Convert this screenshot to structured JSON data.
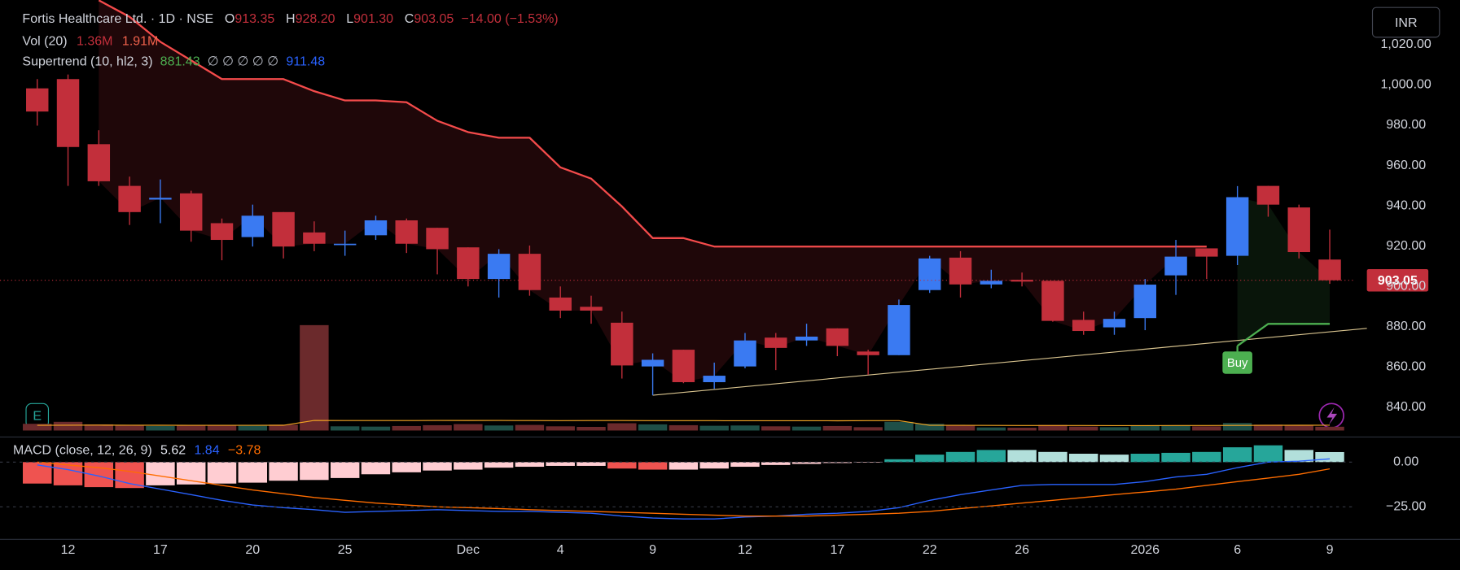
{
  "chart_data": {
    "type": "candlestick",
    "title": "Fortis Healthcare Ltd. · 1D · NSE",
    "ohlc_prefixes": [
      "O",
      "H",
      "L",
      "C"
    ],
    "ohlc_labels": [
      "913.35",
      "928.20",
      "901.30",
      "903.05"
    ],
    "change_label": "−14.00 (−1.53%)",
    "last_price_label": "903.05",
    "currency": "INR",
    "badge": "E",
    "colors": {
      "up": "#3a7af2",
      "down": "#c22f3b"
    },
    "categories": [
      null,
      "12",
      null,
      null,
      "17",
      null,
      null,
      "20",
      null,
      null,
      "25",
      null,
      null,
      null,
      "Dec",
      null,
      null,
      "4",
      null,
      null,
      "9",
      null,
      null,
      "12",
      null,
      null,
      "17",
      null,
      null,
      "22",
      null,
      null,
      "26",
      null,
      null,
      null,
      "2026",
      null,
      null,
      "6",
      null,
      null,
      "9"
    ],
    "open": [
      998.3,
      1002.9,
      970.6,
      949.9,
      943.1,
      946.2,
      931.4,
      924.5,
      936.9,
      926.8,
      920.8,
      925.4,
      932.8,
      929.1,
      919.4,
      903.7,
      916.2,
      894.5,
      889.9,
      882.0,
      860.3,
      868.6,
      852.5,
      860.3,
      874.6,
      873.2,
      879.2,
      867.7,
      865.9,
      898.2,
      914.3,
      901.0,
      903.3,
      902.8,
      883.4,
      879.7,
      884.3,
      905.5,
      918.9,
      915.2,
      949.9,
      939.2,
      913.35
    ],
    "high": [
      1002.9,
      1005.2,
      977.5,
      954.5,
      953.1,
      947.5,
      933.7,
      940.6,
      936.9,
      932.3,
      927.7,
      935.1,
      933.7,
      929.1,
      919.4,
      918.5,
      920.3,
      900.0,
      895.4,
      887.5,
      866.8,
      868.6,
      862.2,
      876.9,
      876.9,
      881.5,
      879.2,
      868.6,
      893.5,
      915.2,
      917.5,
      908.3,
      906.9,
      902.8,
      887.5,
      887.5,
      903.7,
      923.1,
      918.9,
      949.8,
      949.9,
      940.6,
      928.2
    ],
    "low": [
      979.8,
      949.9,
      949.9,
      930.5,
      931.4,
      922.2,
      913.0,
      919.8,
      913.9,
      917.5,
      915.2,
      923.1,
      916.6,
      906.0,
      900.0,
      894.5,
      895.4,
      884.3,
      881.5,
      854.3,
      846.0,
      852.0,
      849.2,
      859.4,
      858.5,
      870.5,
      865.4,
      856.2,
      865.9,
      896.8,
      894.5,
      899.1,
      900.0,
      882.5,
      876.0,
      876.0,
      878.3,
      895.8,
      903.7,
      910.6,
      934.6,
      913.9,
      901.3
    ],
    "close": [
      986.8,
      969.2,
      952.2,
      936.9,
      944.0,
      927.7,
      923.1,
      935.1,
      919.8,
      921.2,
      921.2,
      932.8,
      921.2,
      918.5,
      903.7,
      916.2,
      898.2,
      888.0,
      888.0,
      860.8,
      863.6,
      852.5,
      855.7,
      873.2,
      869.5,
      875.1,
      870.5,
      865.9,
      890.8,
      913.9,
      901.0,
      902.8,
      902.4,
      882.9,
      877.9,
      883.9,
      900.9,
      914.8,
      914.8,
      944.3,
      940.6,
      917.05,
      903.05
    ],
    "ylim": [
      828.5,
      1042.15
    ],
    "yticks": [
      {
        "value": 840,
        "label": "840.00"
      },
      {
        "value": 860,
        "label": "860.00"
      },
      {
        "value": 880,
        "label": "880.00"
      },
      {
        "value": 900,
        "label": "900.00"
      },
      {
        "value": 920,
        "label": "920.00"
      },
      {
        "value": 940,
        "label": "940.00"
      },
      {
        "value": 960,
        "label": "960.00"
      },
      {
        "value": 980,
        "label": "980.00"
      },
      {
        "value": 1000,
        "label": "1,000.00"
      },
      {
        "value": 1020,
        "label": "1,020.00"
      }
    ],
    "supertrend": {
      "title": "Supertrend (10, hl2, 3)",
      "labels": [
        "881.43",
        "∅ ∅ ∅ ∅ ∅",
        "911.48"
      ],
      "label_colors": [
        "#4caf50",
        "#b2b5be",
        "#2962ff"
      ],
      "series": [
        {
          "color": "#f44b4b",
          "fill": "rgba(242,54,69,0.13)",
          "values": [
            null,
            null,
            1042,
            1033.8,
            1021.4,
            1012.2,
            1002.9,
            1002.9,
            1002.9,
            996.9,
            992.3,
            992.3,
            991.4,
            982.2,
            976.6,
            973.8,
            973.8,
            959.1,
            953.5,
            939.7,
            924.0,
            924.0,
            919.8,
            919.8,
            919.8,
            919.8,
            919.8,
            919.8,
            919.8,
            919.8,
            919.8,
            919.8,
            919.8,
            919.8,
            919.8,
            919.8,
            919.8,
            919.8,
            919.8,
            null,
            null,
            null,
            null
          ]
        },
        {
          "color": "#4caf50",
          "fill": "rgba(76,175,80,0.12)",
          "values": [
            null,
            null,
            null,
            null,
            null,
            null,
            null,
            null,
            null,
            null,
            null,
            null,
            null,
            null,
            null,
            null,
            null,
            null,
            null,
            null,
            null,
            null,
            null,
            null,
            null,
            null,
            null,
            null,
            null,
            null,
            null,
            null,
            null,
            null,
            null,
            null,
            null,
            null,
            null,
            870.5,
            881.43,
            881.43,
            881.43
          ]
        }
      ]
    },
    "buy_label": "Buy",
    "trendline": {
      "color": "#d9c48f",
      "values": [
        846.0,
        879.2
      ]
    },
    "volume": {
      "title": "Vol (20)",
      "labels": [
        "1.36M",
        "1.91M"
      ],
      "values": [
        2400000,
        3100000,
        2200000,
        1900000,
        1600000,
        2000000,
        1800000,
        1700000,
        2100000,
        37700000,
        1500000,
        1400000,
        1600000,
        1900000,
        2300000,
        1800000,
        2000000,
        1500000,
        1300000,
        2600000,
        2200000,
        1900000,
        1700000,
        1800000,
        1500000,
        1400000,
        1600000,
        1200000,
        3100000,
        2400000,
        1900000,
        1100000,
        1000000,
        2000000,
        1400000,
        1200000,
        1900000,
        1700000,
        1500000,
        2700000,
        2100000,
        1800000,
        1360000
      ],
      "ma_values": [
        1850000,
        1900000,
        1920000,
        1900000,
        1880000,
        1860000,
        1870000,
        1860000,
        1880000,
        3600000,
        3580000,
        3570000,
        3580000,
        3600000,
        3590000,
        3600000,
        3570000,
        3550000,
        3570000,
        3560000,
        3550000,
        3540000,
        3520000,
        3500000,
        3510000,
        3500000,
        3480000,
        3520000,
        3530000,
        1850000,
        1860000,
        1830000,
        1800000,
        1790000,
        1780000,
        1760000,
        1760000,
        1780000,
        1800000,
        1820000,
        1850000,
        1880000,
        1910000
      ],
      "ma_color": "#f5a623",
      "colors": {
        "up": "#1f4f47",
        "down": "#6b2a2c"
      },
      "ylim": [
        0,
        154000000
      ]
    },
    "macd": {
      "title": "MACD (close, 12, 26, 9)",
      "labels": [
        "5.62",
        "1.84",
        "−3.78"
      ],
      "label_colors": [
        "#e0e3eb",
        "#2962ff",
        "#ff6d00"
      ],
      "histogram": [
        -12,
        -13,
        -14,
        -14.5,
        -13,
        -12.5,
        -12,
        -11.5,
        -10.4,
        -10,
        -8.9,
        -6.8,
        -5.7,
        -4.7,
        -4.2,
        -3.1,
        -2.6,
        -2.1,
        -2.1,
        -3.6,
        -4.2,
        -4.2,
        -3.6,
        -2.6,
        -1.6,
        -1.0,
        -0.5,
        -0.3,
        1.6,
        4.2,
        5.7,
        6.8,
        6.8,
        5.7,
        4.7,
        4.2,
        4.7,
        5.2,
        5.7,
        8.3,
        9.4,
        6.8,
        5.62
      ],
      "macd": [
        -1.6,
        -4.2,
        -7.8,
        -12.0,
        -15.1,
        -18.2,
        -21.4,
        -24.0,
        -25.5,
        -26.6,
        -28.1,
        -27.6,
        -27.1,
        -26.6,
        -27.1,
        -27.6,
        -27.6,
        -28.1,
        -28.6,
        -30.2,
        -31.3,
        -31.8,
        -31.8,
        -30.7,
        -30.2,
        -29.2,
        -28.6,
        -27.6,
        -25.5,
        -21.4,
        -18.2,
        -15.6,
        -13.0,
        -12.5,
        -12.5,
        -12.5,
        -10.9,
        -8.3,
        -6.8,
        -3.1,
        0,
        0.5,
        1.84
      ],
      "signal": [
        0,
        -1.6,
        -3.1,
        -5.2,
        -7.8,
        -10.4,
        -13.0,
        -15.6,
        -17.7,
        -19.8,
        -21.4,
        -22.9,
        -24.0,
        -25.0,
        -25.5,
        -26.0,
        -26.6,
        -27.1,
        -27.6,
        -28.1,
        -28.6,
        -29.2,
        -29.7,
        -30.2,
        -30.2,
        -30.2,
        -29.7,
        -29.2,
        -28.6,
        -27.6,
        -26.0,
        -24.5,
        -22.9,
        -21.4,
        -19.8,
        -18.2,
        -16.7,
        -15.1,
        -13.0,
        -10.9,
        -8.9,
        -6.8,
        -3.78
      ],
      "macd_color": "#2962ff",
      "signal_color": "#ff6d00",
      "hist_colors": {
        "neg_grow": "#ef5350",
        "neg_fall": "#ffcdd2",
        "pos_grow": "#26a69a",
        "pos_fall": "#b2dfdb"
      },
      "ylim": [
        -43.2,
        13.0
      ],
      "yticks": [
        {
          "value": 0,
          "label": "0.00"
        },
        {
          "value": -25,
          "label": "−25.00"
        }
      ]
    }
  }
}
